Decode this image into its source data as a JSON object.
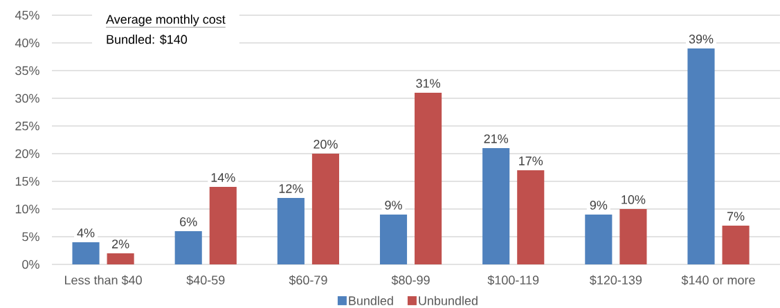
{
  "chart_data": {
    "type": "bar",
    "categories": [
      "Less than $40",
      "$40-59",
      "$60-79",
      "$80-99",
      "$100-119",
      "$120-139",
      "$140 or more"
    ],
    "series": [
      {
        "name": "Bundled",
        "color": "#4f81bd",
        "values": [
          4,
          6,
          12,
          9,
          21,
          9,
          39
        ],
        "value_labels": [
          "4%",
          "6%",
          "12%",
          "9%",
          "21%",
          "9%",
          "39%"
        ]
      },
      {
        "name": "Unbundled",
        "color": "#c0504d",
        "values": [
          2,
          14,
          20,
          31,
          17,
          10,
          7
        ],
        "value_labels": [
          "2%",
          "14%",
          "20%",
          "31%",
          "17%",
          "10%",
          "7%"
        ]
      }
    ],
    "ylim": [
      0,
      45
    ],
    "yticks": [
      {
        "value": 0,
        "label": "0%"
      },
      {
        "value": 5,
        "label": "5%"
      },
      {
        "value": 10,
        "label": "10%"
      },
      {
        "value": 15,
        "label": "15%"
      },
      {
        "value": 20,
        "label": "20%"
      },
      {
        "value": 25,
        "label": "25%"
      },
      {
        "value": 30,
        "label": "30%"
      },
      {
        "value": 35,
        "label": "35%"
      },
      {
        "value": 40,
        "label": "40%"
      },
      {
        "value": 45,
        "label": "45%"
      }
    ],
    "grid": "y",
    "legend": "bottom",
    "annotations": [
      "Average monthly cost",
      "Bundled: $140"
    ]
  }
}
